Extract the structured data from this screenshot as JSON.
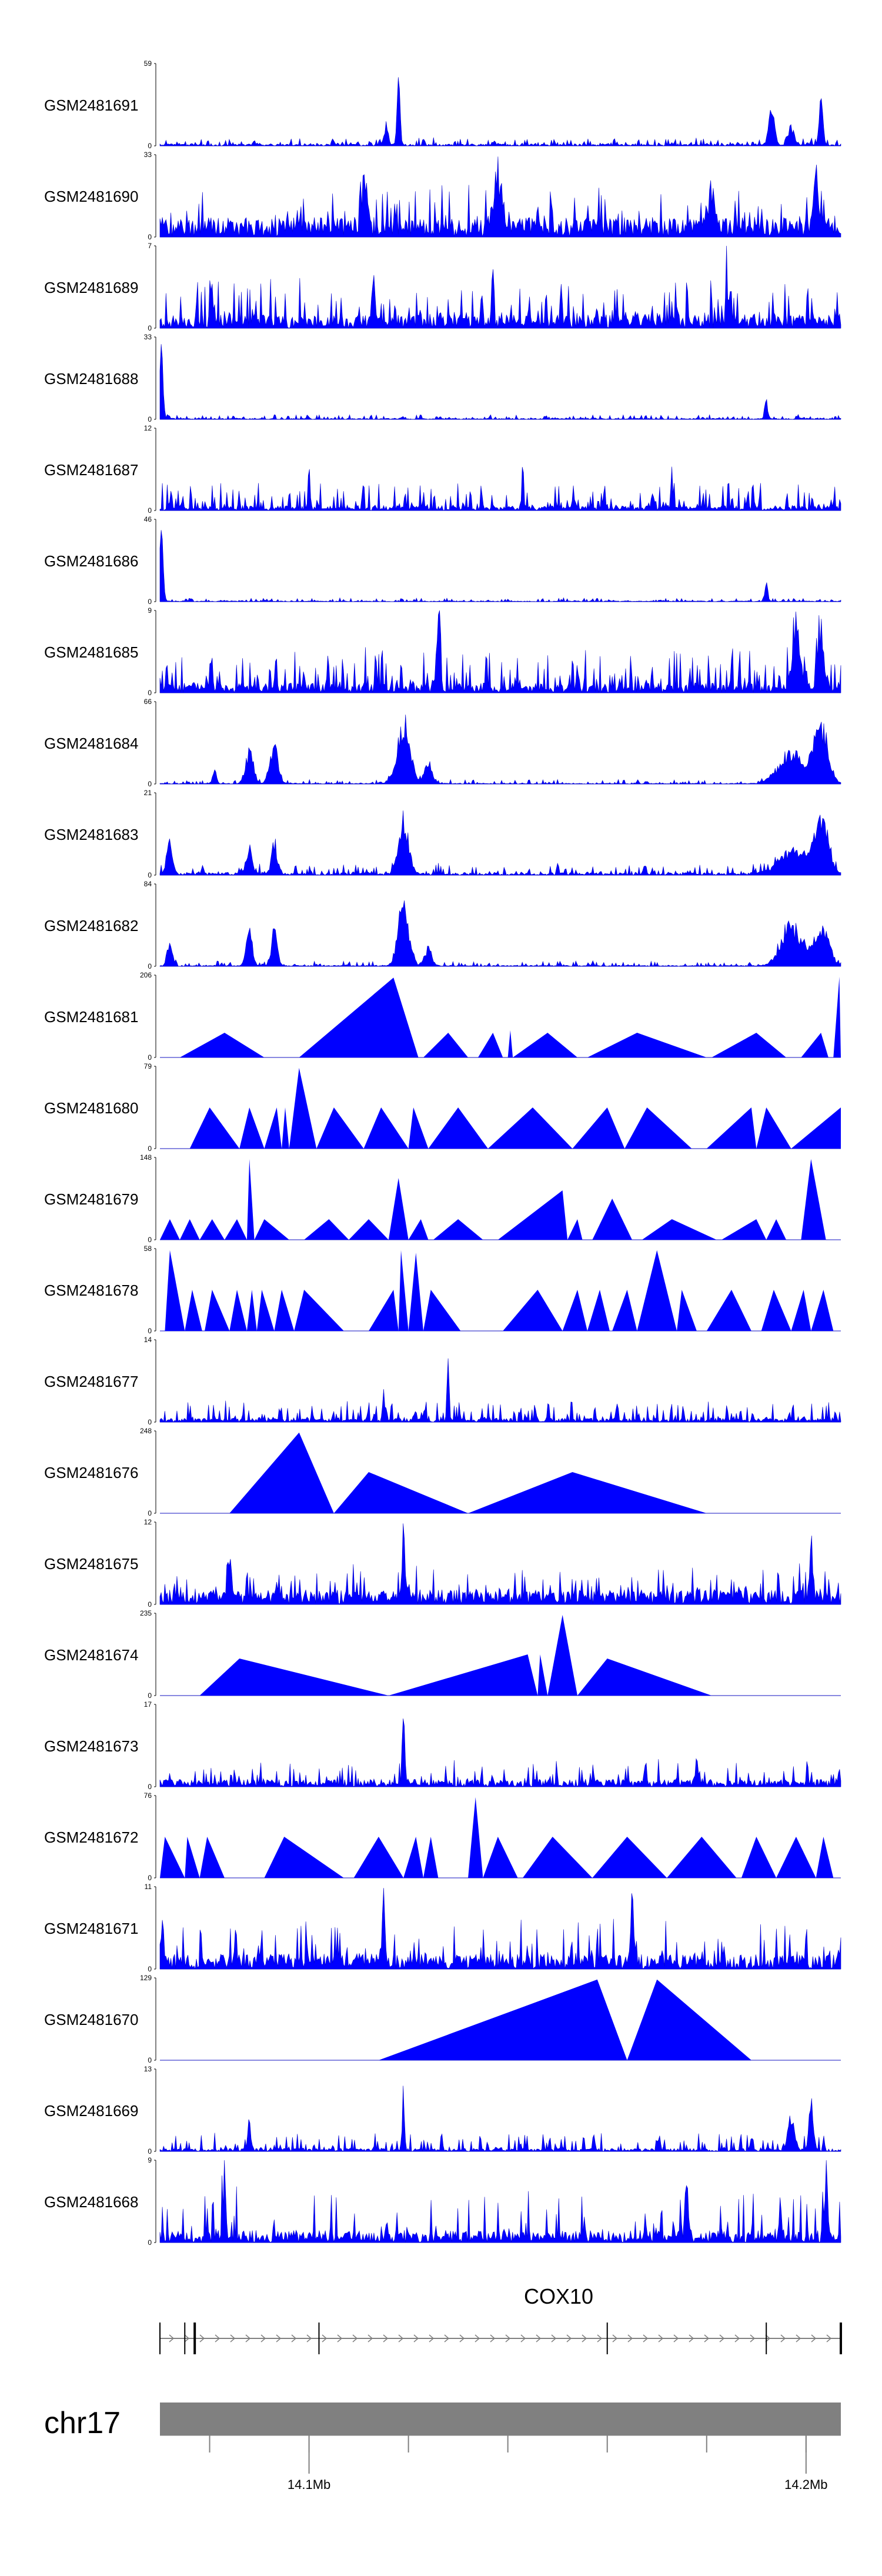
{
  "chart_data": {
    "type": "area",
    "title": "",
    "region": {
      "chromosome": "chr17",
      "start": 14072000,
      "end": 14209000
    },
    "axis": {
      "ticks": [
        14082000,
        14102000,
        14122000,
        14142000,
        14162000,
        14182000,
        14202000
      ],
      "labels": [
        {
          "pos": 14102000,
          "text": "14.1Mb"
        },
        {
          "pos": 14202000,
          "text": "14.2Mb"
        }
      ]
    },
    "gene": {
      "name": "COX10",
      "start": 14072000,
      "end": 14209000,
      "strand": "+",
      "exons": [
        14072000,
        14077000,
        14079000,
        14104000,
        14162000,
        14194000,
        14209000
      ]
    },
    "tracks": [
      {
        "name": "GSM2481691",
        "ymax": 59,
        "style": "dense",
        "seed": 11,
        "base": 0.04,
        "noise": 0.08,
        "peaks": [
          [
            14120000,
            0.95,
            300
          ],
          [
            14117500,
            0.3,
            400
          ],
          [
            14195000,
            0.62,
            500
          ],
          [
            14205000,
            0.6,
            400
          ],
          [
            14199000,
            0.25,
            600
          ]
        ]
      },
      {
        "name": "GSM2481690",
        "ymax": 33,
        "style": "spiky",
        "seed": 12,
        "base": 0.4,
        "noise": 0.45,
        "peaks": [
          [
            14140000,
            0.75,
            900
          ],
          [
            14113000,
            0.6,
            600
          ],
          [
            14183000,
            0.55,
            600
          ],
          [
            14204000,
            0.85,
            500
          ]
        ]
      },
      {
        "name": "GSM2481689",
        "ymax": 7,
        "style": "dense",
        "seed": 13,
        "base": 0.28,
        "noise": 0.45,
        "peaks": [
          [
            14139000,
            0.95,
            200
          ],
          [
            14115000,
            0.7,
            200
          ],
          [
            14186000,
            0.8,
            200
          ]
        ]
      },
      {
        "name": "GSM2481688",
        "ymax": 33,
        "style": "dense",
        "seed": 14,
        "base": 0.02,
        "noise": 0.05,
        "peaks": [
          [
            14072300,
            0.95,
            350
          ],
          [
            14194000,
            0.25,
            300
          ]
        ]
      },
      {
        "name": "GSM2481687",
        "ymax": 12,
        "style": "dense",
        "seed": 15,
        "base": 0.1,
        "noise": 0.3,
        "peaks": [
          [
            14102000,
            0.6,
            200
          ],
          [
            14145000,
            0.65,
            200
          ],
          [
            14175000,
            0.55,
            200
          ]
        ]
      },
      {
        "name": "GSM2481686",
        "ymax": 46,
        "style": "dense",
        "seed": 16,
        "base": 0.015,
        "noise": 0.04,
        "peaks": [
          [
            14072300,
            0.95,
            350
          ],
          [
            14194000,
            0.25,
            300
          ]
        ]
      },
      {
        "name": "GSM2481685",
        "ymax": 9,
        "style": "dense",
        "seed": 17,
        "base": 0.2,
        "noise": 0.45,
        "peaks": [
          [
            14128000,
            0.9,
            400
          ],
          [
            14187000,
            0.55,
            200
          ],
          [
            14200000,
            0.95,
            800
          ],
          [
            14205000,
            0.85,
            600
          ]
        ]
      },
      {
        "name": "GSM2481684",
        "ymax": 66,
        "style": "dense",
        "seed": 18,
        "base": 0.015,
        "noise": 0.05,
        "peaks": [
          [
            14083000,
            0.18,
            400
          ],
          [
            14090000,
            0.45,
            800
          ],
          [
            14095000,
            0.55,
            800
          ],
          [
            14121000,
            0.85,
            1300
          ],
          [
            14126000,
            0.3,
            800
          ],
          [
            14199000,
            0.45,
            2500
          ],
          [
            14205000,
            0.85,
            1400
          ]
        ]
      },
      {
        "name": "GSM2481683",
        "ymax": 21,
        "style": "dense",
        "seed": 19,
        "base": 0.05,
        "noise": 0.12,
        "peaks": [
          [
            14074000,
            0.45,
            600
          ],
          [
            14090000,
            0.4,
            600
          ],
          [
            14095000,
            0.4,
            600
          ],
          [
            14121000,
            0.8,
            1000
          ],
          [
            14199000,
            0.35,
            2500
          ],
          [
            14205000,
            0.75,
            1500
          ]
        ]
      },
      {
        "name": "GSM2481682",
        "ymax": 84,
        "style": "dense",
        "seed": 20,
        "base": 0.02,
        "noise": 0.06,
        "peaks": [
          [
            14074000,
            0.35,
            500
          ],
          [
            14090000,
            0.55,
            600
          ],
          [
            14095000,
            0.5,
            600
          ],
          [
            14121000,
            0.85,
            1100
          ],
          [
            14126000,
            0.25,
            700
          ],
          [
            14199000,
            0.6,
            2000
          ],
          [
            14205000,
            0.55,
            1500
          ]
        ]
      },
      {
        "name": "GSM2481681",
        "ymax": 206,
        "style": "tri",
        "peaks": [
          [
            14076000,
            14085000,
            14093000,
            0.3
          ],
          [
            14100000,
            14119000,
            14124000,
            0.97
          ],
          [
            14125000,
            14130000,
            14134000,
            0.3
          ],
          [
            14136000,
            14139000,
            14141000,
            0.3
          ],
          [
            14142000,
            14142500,
            14143000,
            0.33
          ],
          [
            14143000,
            14150000,
            14156000,
            0.3
          ],
          [
            14158000,
            14168000,
            14182000,
            0.3
          ],
          [
            14183000,
            14192000,
            14198000,
            0.3
          ],
          [
            14201000,
            14205000,
            14206500,
            0.3
          ],
          [
            14207500,
            14208700,
            14209000,
            0.98
          ]
        ]
      },
      {
        "name": "GSM2481680",
        "ymax": 79,
        "style": "tri",
        "peaks": [
          [
            14078000,
            14082000,
            14088000,
            0.5
          ],
          [
            14088000,
            14090000,
            14093000,
            0.5
          ],
          [
            14093000,
            14095500,
            14096500,
            0.5
          ],
          [
            14096500,
            14097200,
            14098000,
            0.5
          ],
          [
            14098000,
            14100000,
            14103500,
            0.98
          ],
          [
            14103500,
            14107000,
            14113000,
            0.5
          ],
          [
            14113000,
            14116500,
            14122000,
            0.5
          ],
          [
            14122000,
            14123000,
            14126000,
            0.5
          ],
          [
            14126000,
            14132000,
            14138000,
            0.5
          ],
          [
            14138000,
            14147000,
            14155000,
            0.5
          ],
          [
            14155000,
            14162000,
            14165500,
            0.5
          ],
          [
            14165500,
            14170000,
            14179000,
            0.5
          ],
          [
            14182000,
            14191000,
            14192000,
            0.5
          ],
          [
            14192000,
            14194000,
            14199000,
            0.5
          ],
          [
            14199000,
            14209000,
            14209000,
            0.5
          ]
        ]
      },
      {
        "name": "GSM2481679",
        "ymax": 148,
        "style": "tri",
        "peaks": [
          [
            14072000,
            14074000,
            14076000,
            0.25
          ],
          [
            14076000,
            14078000,
            14080000,
            0.25
          ],
          [
            14080000,
            14082500,
            14085000,
            0.25
          ],
          [
            14085000,
            14087500,
            14089500,
            0.25
          ],
          [
            14089500,
            14090000,
            14091000,
            0.98
          ],
          [
            14091000,
            14093000,
            14098000,
            0.25
          ],
          [
            14101000,
            14106000,
            14110000,
            0.25
          ],
          [
            14110000,
            14114000,
            14118000,
            0.25
          ],
          [
            14118000,
            14120000,
            14122000,
            0.75
          ],
          [
            14122000,
            14124500,
            14126000,
            0.25
          ],
          [
            14127000,
            14132000,
            14137000,
            0.25
          ],
          [
            14140000,
            14153000,
            14154000,
            0.6
          ],
          [
            14154000,
            14156000,
            14157000,
            0.25
          ],
          [
            14159000,
            14163000,
            14167000,
            0.5
          ],
          [
            14169000,
            14175000,
            14184000,
            0.25
          ],
          [
            14185000,
            14192000,
            14194000,
            0.25
          ],
          [
            14194000,
            14196000,
            14198000,
            0.25
          ],
          [
            14201000,
            14203000,
            14206000,
            0.98
          ]
        ]
      },
      {
        "name": "GSM2481678",
        "ymax": 58,
        "style": "tri",
        "peaks": [
          [
            14073000,
            14074000,
            14077000,
            0.98
          ],
          [
            14077000,
            14078500,
            14080500,
            0.5
          ],
          [
            14081000,
            14082500,
            14086000,
            0.5
          ],
          [
            14086000,
            14087500,
            14089500,
            0.5
          ],
          [
            14089500,
            14090500,
            14091500,
            0.5
          ],
          [
            14091500,
            14092500,
            14095000,
            0.5
          ],
          [
            14095000,
            14096500,
            14099000,
            0.5
          ],
          [
            14099000,
            14101000,
            14109000,
            0.5
          ],
          [
            14114000,
            14119000,
            14120000,
            0.5
          ],
          [
            14120000,
            14120500,
            14122000,
            0.98
          ],
          [
            14122000,
            14123500,
            14125000,
            0.95
          ],
          [
            14125000,
            14126500,
            14132500,
            0.5
          ],
          [
            14141000,
            14148000,
            14153000,
            0.5
          ],
          [
            14153000,
            14156000,
            14158000,
            0.5
          ],
          [
            14158000,
            14160500,
            14162500,
            0.5
          ],
          [
            14163000,
            14166000,
            14168000,
            0.5
          ],
          [
            14168000,
            14172000,
            14176000,
            0.98
          ],
          [
            14176000,
            14177000,
            14180000,
            0.5
          ],
          [
            14182000,
            14187000,
            14191000,
            0.5
          ],
          [
            14193000,
            14195500,
            14199000,
            0.5
          ],
          [
            14199000,
            14201500,
            14203000,
            0.5
          ],
          [
            14203000,
            14205500,
            14207500,
            0.5
          ]
        ]
      },
      {
        "name": "GSM2481677",
        "ymax": 14,
        "style": "dense",
        "seed": 21,
        "base": 0.08,
        "noise": 0.22,
        "peaks": [
          [
            14130000,
            0.95,
            200
          ],
          [
            14117000,
            0.4,
            200
          ],
          [
            14164000,
            0.35,
            200
          ]
        ]
      },
      {
        "name": "GSM2481676",
        "ymax": 248,
        "style": "tri",
        "peaks": [
          [
            14086000,
            14100000,
            14107000,
            0.98
          ],
          [
            14107000,
            14114000,
            14134000,
            0.5
          ],
          [
            14134000,
            14155000,
            14182000,
            0.5
          ]
        ]
      },
      {
        "name": "GSM2481675",
        "ymax": 12,
        "style": "spiky",
        "seed": 22,
        "base": 0.3,
        "noise": 0.35,
        "peaks": [
          [
            14121000,
            0.95,
            300
          ],
          [
            14203000,
            0.9,
            300
          ],
          [
            14086000,
            0.65,
            300
          ]
        ]
      },
      {
        "name": "GSM2481674",
        "ymax": 235,
        "style": "tri",
        "peaks": [
          [
            14080000,
            14088000,
            14118000,
            0.45
          ],
          [
            14118000,
            14146000,
            14148000,
            0.5
          ],
          [
            14148000,
            14148500,
            14150000,
            0.5
          ],
          [
            14150000,
            14153000,
            14156000,
            0.98
          ],
          [
            14156000,
            14162000,
            14183000,
            0.45
          ]
        ]
      },
      {
        "name": "GSM2481673",
        "ymax": 17,
        "style": "spiky",
        "seed": 23,
        "base": 0.15,
        "noise": 0.25,
        "peaks": [
          [
            14121000,
            0.95,
            250
          ],
          [
            14180000,
            0.35,
            300
          ]
        ]
      },
      {
        "name": "GSM2481672",
        "ymax": 76,
        "style": "tri",
        "peaks": [
          [
            14072000,
            14073000,
            14077000,
            0.5
          ],
          [
            14077000,
            14077500,
            14080000,
            0.5
          ],
          [
            14080000,
            14081500,
            14085000,
            0.5
          ],
          [
            14093000,
            14097000,
            14109000,
            0.5
          ],
          [
            14111000,
            14116000,
            14121000,
            0.5
          ],
          [
            14121000,
            14123500,
            14125000,
            0.5
          ],
          [
            14125000,
            14126500,
            14128000,
            0.5
          ],
          [
            14134000,
            14135500,
            14137000,
            0.98
          ],
          [
            14137000,
            14140000,
            14144000,
            0.5
          ],
          [
            14145000,
            14151000,
            14159000,
            0.5
          ],
          [
            14159000,
            14166000,
            14174000,
            0.5
          ],
          [
            14174000,
            14181000,
            14188000,
            0.5
          ],
          [
            14189000,
            14192000,
            14196000,
            0.5
          ],
          [
            14196000,
            14200000,
            14204000,
            0.5
          ],
          [
            14204000,
            14205500,
            14207500,
            0.5
          ]
        ]
      },
      {
        "name": "GSM2481671",
        "ymax": 11,
        "style": "spiky",
        "seed": 24,
        "base": 0.3,
        "noise": 0.5,
        "peaks": [
          [
            14167000,
            0.95,
            300
          ],
          [
            14117000,
            0.9,
            300
          ],
          [
            14072500,
            0.8,
            300
          ]
        ]
      },
      {
        "name": "GSM2481670",
        "ymax": 129,
        "style": "tri",
        "peaks": [
          [
            14116000,
            14160000,
            14166000,
            0.98
          ],
          [
            14166000,
            14172000,
            14191000,
            0.98
          ]
        ]
      },
      {
        "name": "GSM2481669",
        "ymax": 13,
        "style": "dense",
        "seed": 25,
        "base": 0.06,
        "noise": 0.2,
        "peaks": [
          [
            14121000,
            0.95,
            200
          ],
          [
            14090000,
            0.45,
            300
          ],
          [
            14203000,
            0.8,
            400
          ],
          [
            14199000,
            0.5,
            600
          ]
        ]
      },
      {
        "name": "GSM2481668",
        "ymax": 9,
        "style": "spiky",
        "seed": 26,
        "base": 0.25,
        "noise": 0.55,
        "peaks": [
          [
            14085000,
            0.95,
            300
          ],
          [
            14178000,
            0.85,
            300
          ],
          [
            14206000,
            0.95,
            300
          ]
        ]
      }
    ]
  }
}
